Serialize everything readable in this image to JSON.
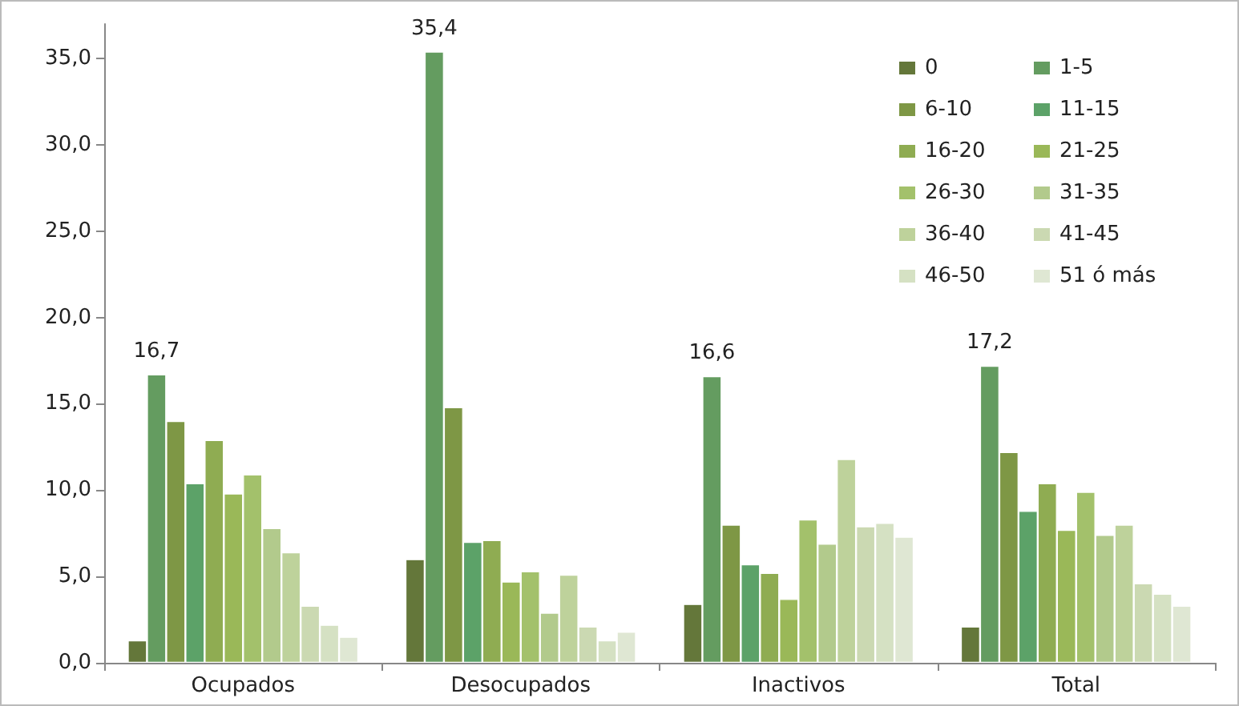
{
  "chart_data": {
    "type": "bar",
    "categories": [
      "Ocupados",
      "Desocupados",
      "Inactivos",
      "Total"
    ],
    "series": [
      {
        "name": "0",
        "color": "#64773a",
        "values": [
          1.3,
          6.0,
          3.4,
          2.1
        ]
      },
      {
        "name": "1-5",
        "color": "#649c60",
        "values": [
          16.7,
          35.4,
          16.6,
          17.2
        ],
        "value_labels": [
          "16,7",
          "35,4",
          "16,6",
          "17,2"
        ]
      },
      {
        "name": "6-10",
        "color": "#7e9745",
        "values": [
          14.0,
          14.8,
          8.0,
          12.2
        ]
      },
      {
        "name": "11-15",
        "color": "#5ca268",
        "values": [
          10.4,
          7.0,
          5.7,
          8.8
        ]
      },
      {
        "name": "16-20",
        "color": "#8fac52",
        "values": [
          12.9,
          7.1,
          5.2,
          10.4
        ]
      },
      {
        "name": "21-25",
        "color": "#9ab858",
        "values": [
          9.8,
          4.7,
          3.7,
          7.7
        ]
      },
      {
        "name": "26-30",
        "color": "#a3c16b",
        "values": [
          10.9,
          5.3,
          8.3,
          9.9
        ]
      },
      {
        "name": "31-35",
        "color": "#b2ca8c",
        "values": [
          7.8,
          2.9,
          6.9,
          7.4
        ]
      },
      {
        "name": "36-40",
        "color": "#bed29b",
        "values": [
          6.4,
          5.1,
          11.8,
          8.0
        ]
      },
      {
        "name": "41-45",
        "color": "#cbd9b2",
        "values": [
          3.3,
          2.1,
          7.9,
          4.6
        ]
      },
      {
        "name": "46-50",
        "color": "#d5e1c3",
        "values": [
          2.2,
          1.3,
          8.1,
          4.0
        ]
      },
      {
        "name": "51 ó más",
        "color": "#dfe7d3",
        "values": [
          1.5,
          1.8,
          7.3,
          3.3
        ]
      }
    ],
    "ylim": [
      0,
      37
    ],
    "yticks": [
      {
        "value": 0,
        "label": "0,0"
      },
      {
        "value": 5,
        "label": "5,0"
      },
      {
        "value": 10,
        "label": "10,0"
      },
      {
        "value": 15,
        "label": "15,0"
      },
      {
        "value": 20,
        "label": "20,0"
      },
      {
        "value": 25,
        "label": "25,0"
      },
      {
        "value": 30,
        "label": "30,0"
      },
      {
        "value": 35,
        "label": "35,0"
      }
    ],
    "grid": false,
    "legend": "top right"
  }
}
